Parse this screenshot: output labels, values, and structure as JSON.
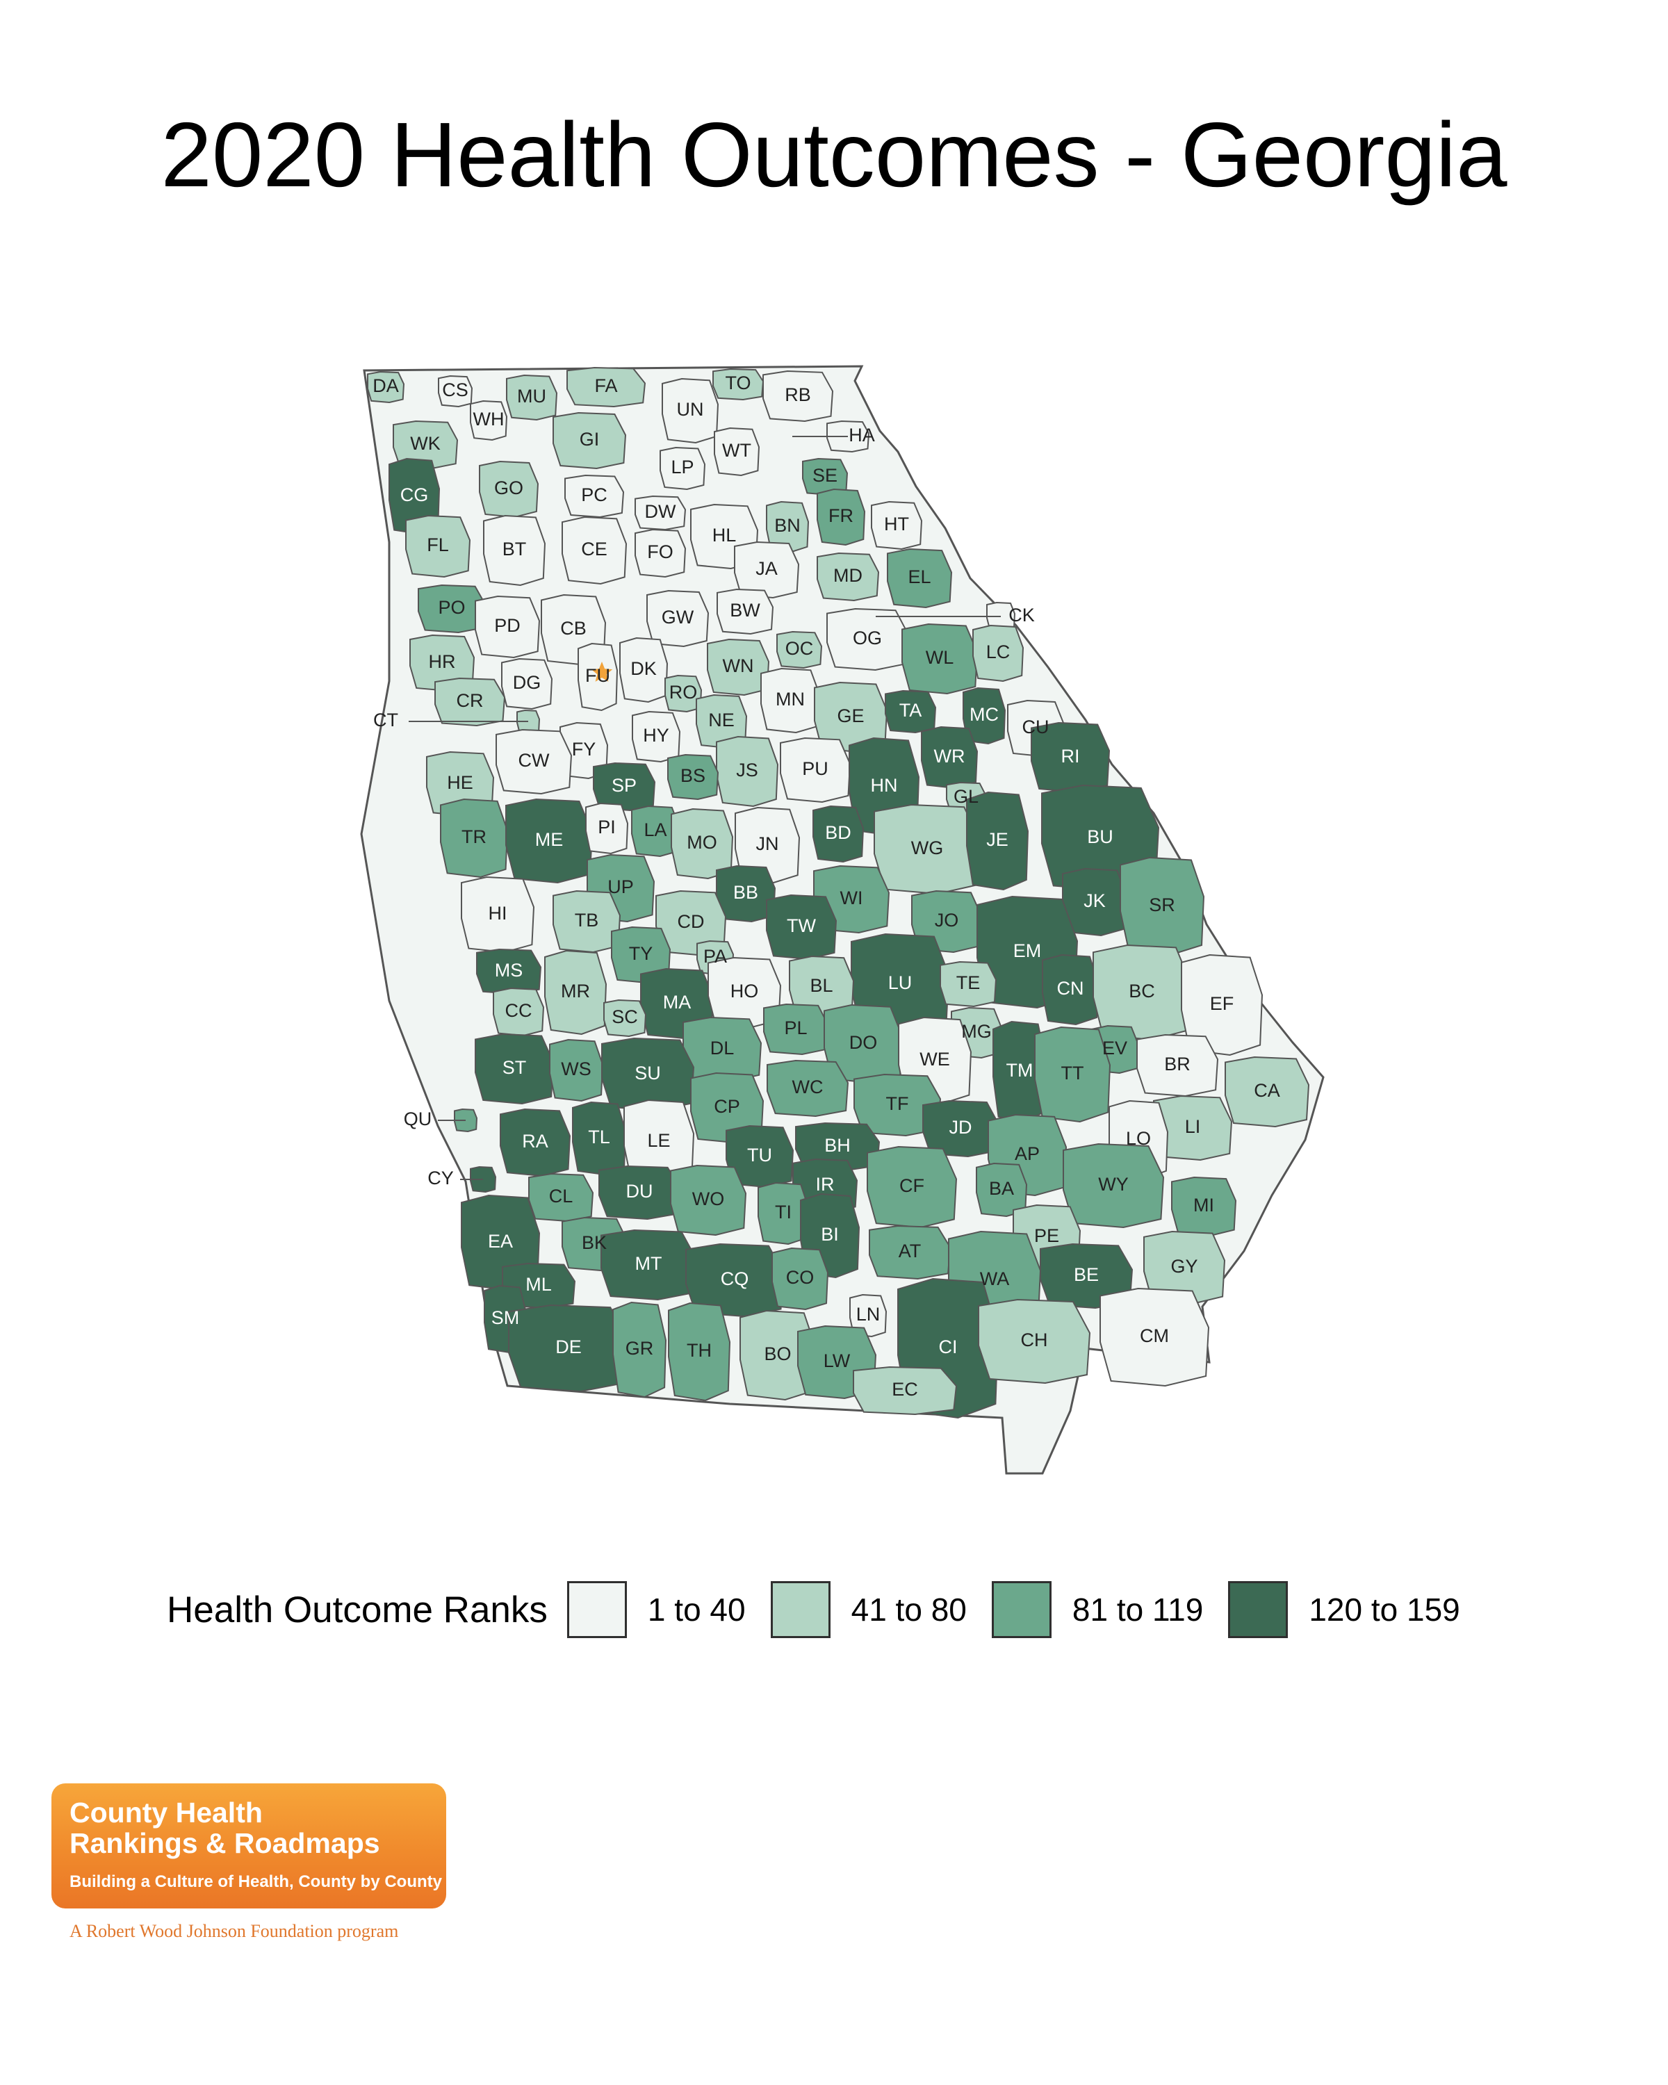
{
  "title": "2020 Health Outcomes - Georgia",
  "colors": {
    "bin1": "#f1f5f3",
    "bin2": "#b2d5c4",
    "bin3": "#6ba88c",
    "bin4": "#3c6a54",
    "border": "#555555"
  },
  "legend": {
    "title": "Health Outcome Ranks",
    "bins": [
      {
        "label": "1 to 40",
        "bin": 1
      },
      {
        "label": "41 to 80",
        "bin": 2
      },
      {
        "label": "81 to 119",
        "bin": 3
      },
      {
        "label": "120 to 159",
        "bin": 4
      }
    ]
  },
  "counties": [
    {
      "abbr": "DA",
      "bin": 2
    },
    {
      "abbr": "CS",
      "bin": 1
    },
    {
      "abbr": "MU",
      "bin": 2
    },
    {
      "abbr": "FA",
      "bin": 2
    },
    {
      "abbr": "TO",
      "bin": 2
    },
    {
      "abbr": "UN",
      "bin": 1
    },
    {
      "abbr": "RB",
      "bin": 1
    },
    {
      "abbr": "WH",
      "bin": 1
    },
    {
      "abbr": "WK",
      "bin": 2
    },
    {
      "abbr": "GI",
      "bin": 2
    },
    {
      "abbr": "HA",
      "bin": 1
    },
    {
      "abbr": "LP",
      "bin": 1
    },
    {
      "abbr": "WT",
      "bin": 1
    },
    {
      "abbr": "CG",
      "bin": 4
    },
    {
      "abbr": "GO",
      "bin": 2
    },
    {
      "abbr": "PC",
      "bin": 1
    },
    {
      "abbr": "SE",
      "bin": 3
    },
    {
      "abbr": "DW",
      "bin": 1
    },
    {
      "abbr": "FR",
      "bin": 3
    },
    {
      "abbr": "BN",
      "bin": 2
    },
    {
      "abbr": "HT",
      "bin": 1
    },
    {
      "abbr": "FL",
      "bin": 2
    },
    {
      "abbr": "BT",
      "bin": 1
    },
    {
      "abbr": "CE",
      "bin": 1
    },
    {
      "abbr": "FO",
      "bin": 1
    },
    {
      "abbr": "HL",
      "bin": 1
    },
    {
      "abbr": "JA",
      "bin": 1
    },
    {
      "abbr": "MD",
      "bin": 2
    },
    {
      "abbr": "EL",
      "bin": 3
    },
    {
      "abbr": "CK",
      "bin": 1
    },
    {
      "abbr": "PO",
      "bin": 3
    },
    {
      "abbr": "GW",
      "bin": 1
    },
    {
      "abbr": "BW",
      "bin": 1
    },
    {
      "abbr": "PD",
      "bin": 1
    },
    {
      "abbr": "CB",
      "bin": 1
    },
    {
      "abbr": "OG",
      "bin": 1
    },
    {
      "abbr": "OC",
      "bin": 2
    },
    {
      "abbr": "WL",
      "bin": 3
    },
    {
      "abbr": "LC",
      "bin": 2
    },
    {
      "abbr": "HR",
      "bin": 2
    },
    {
      "abbr": "WN",
      "bin": 2
    },
    {
      "abbr": "DK",
      "bin": 1
    },
    {
      "abbr": "FU",
      "bin": 1
    },
    {
      "abbr": "DG",
      "bin": 1
    },
    {
      "abbr": "RO",
      "bin": 2
    },
    {
      "abbr": "MN",
      "bin": 1
    },
    {
      "abbr": "CR",
      "bin": 2
    },
    {
      "abbr": "NE",
      "bin": 2
    },
    {
      "abbr": "GE",
      "bin": 2
    },
    {
      "abbr": "TA",
      "bin": 4
    },
    {
      "abbr": "MC",
      "bin": 4
    },
    {
      "abbr": "CU",
      "bin": 1
    },
    {
      "abbr": "CT",
      "bin": 2
    },
    {
      "abbr": "HY",
      "bin": 1
    },
    {
      "abbr": "FY",
      "bin": 1
    },
    {
      "abbr": "CW",
      "bin": 1
    },
    {
      "abbr": "WR",
      "bin": 4
    },
    {
      "abbr": "RI",
      "bin": 4
    },
    {
      "abbr": "HE",
      "bin": 2
    },
    {
      "abbr": "JS",
      "bin": 2
    },
    {
      "abbr": "PU",
      "bin": 1
    },
    {
      "abbr": "SP",
      "bin": 4
    },
    {
      "abbr": "BS",
      "bin": 3
    },
    {
      "abbr": "HN",
      "bin": 4
    },
    {
      "abbr": "GL",
      "bin": 2
    },
    {
      "abbr": "TR",
      "bin": 3
    },
    {
      "abbr": "ME",
      "bin": 4
    },
    {
      "abbr": "PI",
      "bin": 1
    },
    {
      "abbr": "LA",
      "bin": 3
    },
    {
      "abbr": "MO",
      "bin": 2
    },
    {
      "abbr": "JN",
      "bin": 1
    },
    {
      "abbr": "BD",
      "bin": 4
    },
    {
      "abbr": "WG",
      "bin": 2
    },
    {
      "abbr": "JE",
      "bin": 4
    },
    {
      "abbr": "BU",
      "bin": 4
    },
    {
      "abbr": "UP",
      "bin": 3
    },
    {
      "abbr": "BB",
      "bin": 4
    },
    {
      "abbr": "WI",
      "bin": 3
    },
    {
      "abbr": "JK",
      "bin": 4
    },
    {
      "abbr": "SR",
      "bin": 3
    },
    {
      "abbr": "HI",
      "bin": 1
    },
    {
      "abbr": "TB",
      "bin": 2
    },
    {
      "abbr": "CD",
      "bin": 2
    },
    {
      "abbr": "TW",
      "bin": 4
    },
    {
      "abbr": "JO",
      "bin": 3
    },
    {
      "abbr": "EM",
      "bin": 4
    },
    {
      "abbr": "TY",
      "bin": 3
    },
    {
      "abbr": "PA",
      "bin": 2
    },
    {
      "abbr": "MS",
      "bin": 4
    },
    {
      "abbr": "LU",
      "bin": 4
    },
    {
      "abbr": "CN",
      "bin": 4
    },
    {
      "abbr": "BC",
      "bin": 2
    },
    {
      "abbr": "EF",
      "bin": 1
    },
    {
      "abbr": "CC",
      "bin": 2
    },
    {
      "abbr": "MR",
      "bin": 2
    },
    {
      "abbr": "MA",
      "bin": 4
    },
    {
      "abbr": "HO",
      "bin": 1
    },
    {
      "abbr": "BL",
      "bin": 2
    },
    {
      "abbr": "TE",
      "bin": 2
    },
    {
      "abbr": "SC",
      "bin": 2
    },
    {
      "abbr": "MG",
      "bin": 2
    },
    {
      "abbr": "DL",
      "bin": 3
    },
    {
      "abbr": "PL",
      "bin": 3
    },
    {
      "abbr": "DO",
      "bin": 3
    },
    {
      "abbr": "EV",
      "bin": 3
    },
    {
      "abbr": "ST",
      "bin": 4
    },
    {
      "abbr": "WS",
      "bin": 3
    },
    {
      "abbr": "SU",
      "bin": 4
    },
    {
      "abbr": "WE",
      "bin": 1
    },
    {
      "abbr": "TM",
      "bin": 4
    },
    {
      "abbr": "TT",
      "bin": 3
    },
    {
      "abbr": "BR",
      "bin": 1
    },
    {
      "abbr": "CA",
      "bin": 2
    },
    {
      "abbr": "WC",
      "bin": 3
    },
    {
      "abbr": "QU",
      "bin": 3
    },
    {
      "abbr": "CP",
      "bin": 3
    },
    {
      "abbr": "TF",
      "bin": 3
    },
    {
      "abbr": "LI",
      "bin": 2
    },
    {
      "abbr": "LO",
      "bin": 1
    },
    {
      "abbr": "RA",
      "bin": 4
    },
    {
      "abbr": "TL",
      "bin": 4
    },
    {
      "abbr": "LE",
      "bin": 1
    },
    {
      "abbr": "JD",
      "bin": 4
    },
    {
      "abbr": "BH",
      "bin": 4
    },
    {
      "abbr": "TU",
      "bin": 4
    },
    {
      "abbr": "AP",
      "bin": 3
    },
    {
      "abbr": "CY",
      "bin": 4
    },
    {
      "abbr": "IR",
      "bin": 4
    },
    {
      "abbr": "CF",
      "bin": 3
    },
    {
      "abbr": "BA",
      "bin": 3
    },
    {
      "abbr": "WY",
      "bin": 3
    },
    {
      "abbr": "CL",
      "bin": 3
    },
    {
      "abbr": "DU",
      "bin": 4
    },
    {
      "abbr": "WO",
      "bin": 3
    },
    {
      "abbr": "MI",
      "bin": 3
    },
    {
      "abbr": "TI",
      "bin": 3
    },
    {
      "abbr": "EA",
      "bin": 4
    },
    {
      "abbr": "BK",
      "bin": 3
    },
    {
      "abbr": "BI",
      "bin": 4
    },
    {
      "abbr": "PE",
      "bin": 2
    },
    {
      "abbr": "AT",
      "bin": 3
    },
    {
      "abbr": "MT",
      "bin": 4
    },
    {
      "abbr": "GY",
      "bin": 2
    },
    {
      "abbr": "ML",
      "bin": 4
    },
    {
      "abbr": "CQ",
      "bin": 4
    },
    {
      "abbr": "CO",
      "bin": 3
    },
    {
      "abbr": "WA",
      "bin": 3
    },
    {
      "abbr": "BE",
      "bin": 4
    },
    {
      "abbr": "SM",
      "bin": 4
    },
    {
      "abbr": "LN",
      "bin": 1
    },
    {
      "abbr": "CM",
      "bin": 1
    },
    {
      "abbr": "CI",
      "bin": 4
    },
    {
      "abbr": "DE",
      "bin": 4
    },
    {
      "abbr": "GR",
      "bin": 3
    },
    {
      "abbr": "TH",
      "bin": 3
    },
    {
      "abbr": "BO",
      "bin": 2
    },
    {
      "abbr": "LW",
      "bin": 3
    },
    {
      "abbr": "CH",
      "bin": 2
    },
    {
      "abbr": "EC",
      "bin": 2
    }
  ],
  "logo": {
    "line1": "County Health",
    "line2": "Rankings & Roadmaps",
    "tagline": "Building a Culture of Health, County by County"
  },
  "footer": "A Robert Wood Johnson Foundation program"
}
